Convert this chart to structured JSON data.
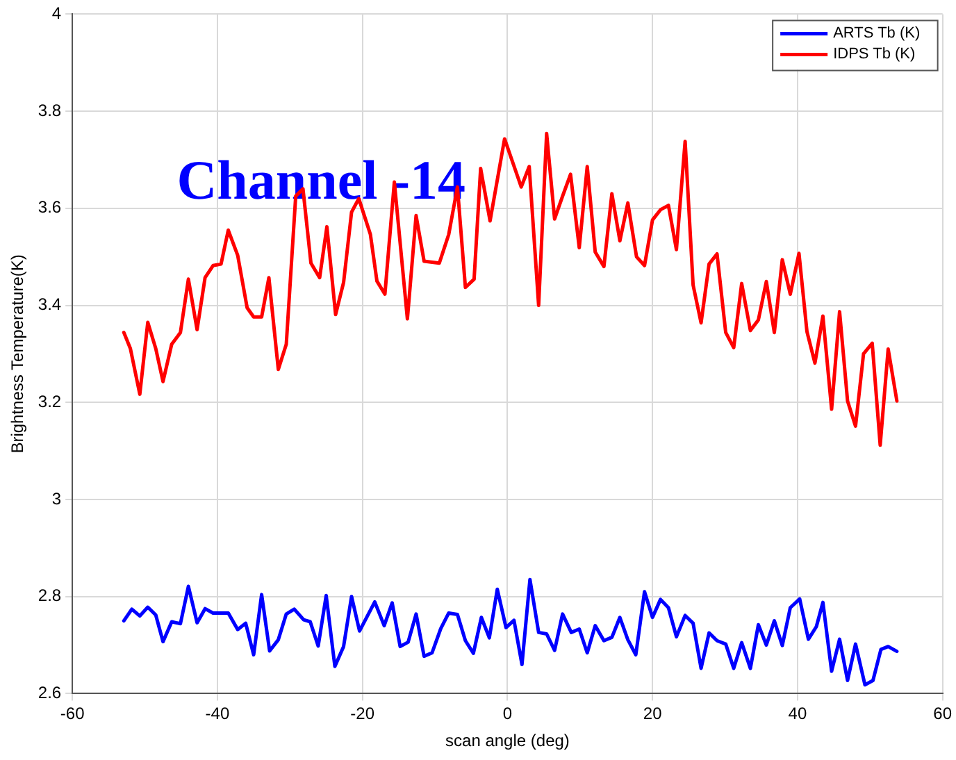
{
  "chart_data": {
    "type": "line",
    "title": "Channel -14",
    "xlabel": "scan angle (deg)",
    "ylabel": "Brightness Temperature(K)",
    "xlim": [
      -60,
      60
    ],
    "xticks": [
      -60,
      -40,
      -20,
      0,
      20,
      40,
      60
    ],
    "ylim": [
      2.6,
      4
    ],
    "yticks": [
      2.6,
      2.8,
      3,
      3.2,
      3.4,
      3.6,
      3.8,
      4
    ],
    "grid": true,
    "legend": "top right",
    "marker": "none",
    "line_style": "solid",
    "series": [
      {
        "name": "ARTS Tb (K)",
        "color": "#0000ff",
        "x": [
          -52.9,
          -51.8,
          -50.7,
          -49.6,
          -48.5,
          -47.5,
          -46.3,
          -45.1,
          -44.0,
          -42.8,
          -41.7,
          -40.6,
          -38.5,
          -37.2,
          -36.1,
          -35.0,
          -33.9,
          -32.8,
          -31.6,
          -30.5,
          -29.4,
          -28.1,
          -27.2,
          -26.1,
          -25.0,
          -23.8,
          -22.6,
          -21.5,
          -20.4,
          -18.3,
          -17.0,
          -15.9,
          -14.8,
          -13.7,
          -12.6,
          -11.5,
          -10.4,
          -9.2,
          -8.1,
          -6.9,
          -5.8,
          -4.7,
          -3.6,
          -2.5,
          -1.4,
          -0.2,
          0.9,
          2.0,
          3.1,
          4.3,
          5.4,
          6.5,
          7.6,
          8.8,
          9.9,
          11.0,
          12.1,
          13.3,
          14.4,
          15.5,
          16.6,
          17.7,
          18.9,
          20.0,
          21.1,
          22.2,
          23.3,
          24.5,
          25.6,
          26.7,
          27.8,
          28.9,
          30.1,
          31.2,
          32.3,
          33.5,
          34.6,
          35.7,
          36.8,
          37.9,
          39.0,
          40.3,
          41.5,
          42.6,
          43.5,
          44.7,
          45.8,
          46.9,
          48.0,
          49.3,
          50.4,
          51.5,
          52.5,
          53.7
        ],
        "values": [
          2.75,
          2.774,
          2.76,
          2.778,
          2.762,
          2.707,
          2.748,
          2.744,
          2.821,
          2.746,
          2.775,
          2.766,
          2.766,
          2.732,
          2.745,
          2.68,
          2.804,
          2.688,
          2.711,
          2.764,
          2.774,
          2.752,
          2.748,
          2.698,
          2.802,
          2.656,
          2.697,
          2.8,
          2.729,
          2.789,
          2.74,
          2.787,
          2.697,
          2.706,
          2.764,
          2.677,
          2.684,
          2.734,
          2.766,
          2.763,
          2.709,
          2.683,
          2.757,
          2.715,
          2.815,
          2.736,
          2.751,
          2.66,
          2.835,
          2.726,
          2.723,
          2.689,
          2.764,
          2.726,
          2.733,
          2.684,
          2.74,
          2.709,
          2.716,
          2.757,
          2.711,
          2.68,
          2.81,
          2.757,
          2.794,
          2.777,
          2.717,
          2.761,
          2.745,
          2.652,
          2.725,
          2.709,
          2.702,
          2.652,
          2.705,
          2.652,
          2.742,
          2.7,
          2.75,
          2.699,
          2.777,
          2.795,
          2.712,
          2.738,
          2.788,
          2.646,
          2.712,
          2.627,
          2.702,
          2.618,
          2.627,
          2.691,
          2.697,
          2.687
        ]
      },
      {
        "name": "IDPS Tb (K)",
        "color": "#ff0000",
        "x": [
          -52.9,
          -52.0,
          -50.7,
          -49.6,
          -48.5,
          -47.5,
          -46.3,
          -45.1,
          -44.0,
          -42.8,
          -41.7,
          -40.6,
          -39.5,
          -38.5,
          -37.2,
          -35.9,
          -35.0,
          -33.9,
          -32.9,
          -31.6,
          -30.5,
          -29.2,
          -28.2,
          -27.1,
          -25.9,
          -24.9,
          -23.7,
          -22.6,
          -21.5,
          -20.5,
          -18.9,
          -18.0,
          -16.9,
          -15.6,
          -13.8,
          -12.6,
          -11.5,
          -9.4,
          -8.1,
          -6.9,
          -5.8,
          -4.6,
          -3.7,
          -2.4,
          -0.4,
          1.9,
          3.0,
          4.3,
          5.4,
          6.5,
          7.6,
          8.7,
          9.9,
          11.0,
          12.1,
          13.3,
          14.4,
          15.5,
          16.6,
          17.8,
          18.9,
          20.0,
          21.1,
          22.2,
          23.3,
          24.5,
          25.6,
          26.7,
          27.8,
          28.9,
          30.1,
          31.2,
          32.3,
          33.5,
          34.6,
          35.7,
          36.8,
          37.9,
          39.0,
          40.2,
          41.3,
          42.4,
          43.5,
          44.7,
          45.8,
          46.9,
          48.0,
          49.1,
          50.3,
          51.4,
          52.5,
          53.7
        ],
        "values": [
          3.344,
          3.311,
          3.217,
          3.365,
          3.311,
          3.243,
          3.32,
          3.344,
          3.454,
          3.35,
          3.457,
          3.482,
          3.485,
          3.555,
          3.503,
          3.395,
          3.376,
          3.376,
          3.457,
          3.268,
          3.32,
          3.625,
          3.64,
          3.487,
          3.457,
          3.562,
          3.381,
          3.447,
          3.592,
          3.62,
          3.546,
          3.45,
          3.423,
          3.654,
          3.372,
          3.585,
          3.491,
          3.487,
          3.546,
          3.644,
          3.437,
          3.454,
          3.682,
          3.574,
          3.743,
          3.644,
          3.686,
          3.4,
          3.754,
          3.578,
          3.625,
          3.67,
          3.519,
          3.686,
          3.51,
          3.48,
          3.63,
          3.533,
          3.611,
          3.5,
          3.482,
          3.576,
          3.597,
          3.606,
          3.515,
          3.738,
          3.442,
          3.364,
          3.485,
          3.506,
          3.344,
          3.313,
          3.445,
          3.348,
          3.37,
          3.449,
          3.344,
          3.494,
          3.423,
          3.507,
          3.346,
          3.281,
          3.378,
          3.186,
          3.387,
          3.203,
          3.151,
          3.3,
          3.322,
          3.112,
          3.31,
          3.203
        ]
      }
    ]
  }
}
